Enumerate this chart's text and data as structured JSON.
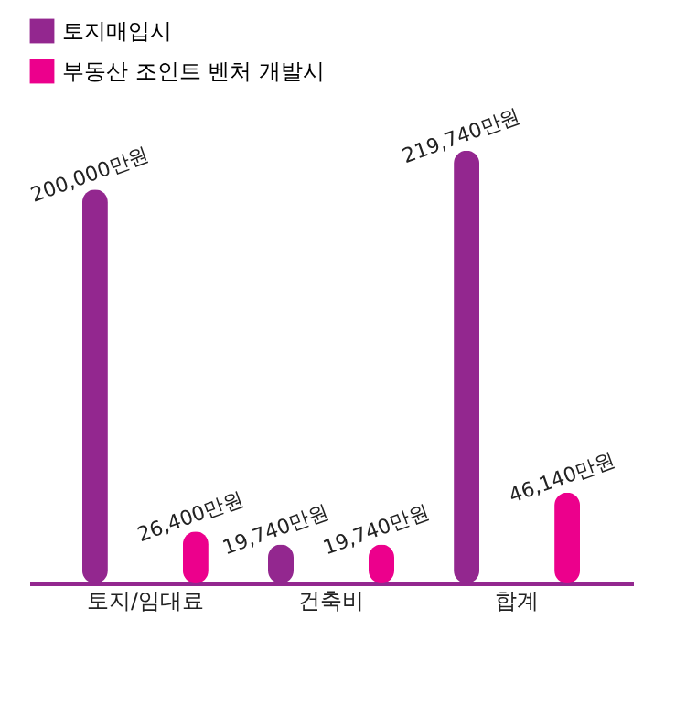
{
  "chart_data": {
    "type": "bar",
    "categories": [
      "토지/임대료",
      "건축비",
      "합계"
    ],
    "series": [
      {
        "name": "토지매입시",
        "color": "#93278f",
        "values": [
          200000,
          19740,
          219740
        ],
        "value_labels": [
          "200,000만원",
          "19,740만원",
          "219,740만원"
        ]
      },
      {
        "name": "부동산 조인트 벤처 개발시",
        "color": "#ec008c",
        "values": [
          26400,
          19740,
          46140
        ],
        "value_labels": [
          "26,400만원",
          "19,740만원",
          "46,140만원"
        ]
      }
    ],
    "legend": "top left",
    "grid": false
  }
}
